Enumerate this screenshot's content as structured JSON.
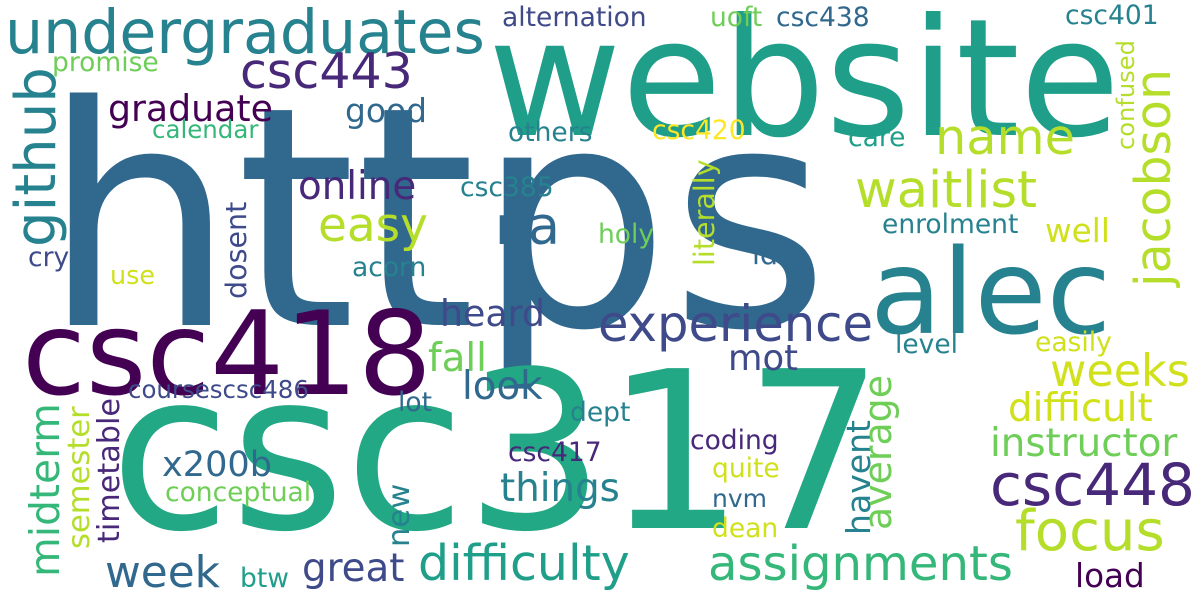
{
  "colors": {
    "background": "#ffffff",
    "palette": [
      "#440154",
      "#482878",
      "#3e4a89",
      "#31688e",
      "#26828e",
      "#1f9e89",
      "#35b779",
      "#6ece58",
      "#b5de2b",
      "#fde725"
    ]
  },
  "words": [
    {
      "text": "https",
      "color": "#31688e",
      "vertical": false
    },
    {
      "text": "csc317",
      "color": "#22a884",
      "vertical": false
    },
    {
      "text": "website",
      "color": "#1f9e89",
      "vertical": false
    },
    {
      "text": "alec",
      "color": "#26828e",
      "vertical": false
    },
    {
      "text": "csc418",
      "color": "#440154",
      "vertical": false
    },
    {
      "text": "undergraduates",
      "color": "#26828e",
      "vertical": false
    },
    {
      "text": "csc443",
      "color": "#482878",
      "vertical": false
    },
    {
      "text": "waitlist",
      "color": "#b5de2b",
      "vertical": false
    },
    {
      "text": "jacobson",
      "color": "#b5de2b",
      "vertical": true
    },
    {
      "text": "name",
      "color": "#b5de2b",
      "vertical": false
    },
    {
      "text": "csc448",
      "color": "#482878",
      "vertical": false
    },
    {
      "text": "focus",
      "color": "#b5de2b",
      "vertical": false
    },
    {
      "text": "experience",
      "color": "#3e4a89",
      "vertical": false
    },
    {
      "text": "difficulty",
      "color": "#1f9e89",
      "vertical": false
    },
    {
      "text": "assignments",
      "color": "#35b779",
      "vertical": false
    },
    {
      "text": "na",
      "color": "#31688e",
      "vertical": false
    },
    {
      "text": "easy",
      "color": "#b5de2b",
      "vertical": false
    },
    {
      "text": "github",
      "color": "#26828e",
      "vertical": true
    },
    {
      "text": "week",
      "color": "#31688e",
      "vertical": false
    },
    {
      "text": "weeks",
      "color": "#d0e11c",
      "vertical": false
    },
    {
      "text": "graduate",
      "color": "#440154",
      "vertical": false
    },
    {
      "text": "good",
      "color": "#31688e",
      "vertical": false
    },
    {
      "text": "difficult",
      "color": "#d0e11c",
      "vertical": false
    },
    {
      "text": "instructor",
      "color": "#6ece58",
      "vertical": false
    },
    {
      "text": "things",
      "color": "#26828e",
      "vertical": false
    },
    {
      "text": "midterm",
      "color": "#35b779",
      "vertical": true
    },
    {
      "text": "x200b",
      "color": "#31688e",
      "vertical": false
    },
    {
      "text": "online",
      "color": "#482878",
      "vertical": false
    },
    {
      "text": "heard",
      "color": "#3e4a89",
      "vertical": false
    },
    {
      "text": "fall",
      "color": "#6ece58",
      "vertical": false
    },
    {
      "text": "mot",
      "color": "#3e4a89",
      "vertical": false
    },
    {
      "text": "look",
      "color": "#31688e",
      "vertical": false
    },
    {
      "text": "great",
      "color": "#3e4a89",
      "vertical": false
    },
    {
      "text": "load",
      "color": "#440154",
      "vertical": false
    },
    {
      "text": "well",
      "color": "#d0e11c",
      "vertical": false
    },
    {
      "text": "havent",
      "color": "#26828e",
      "vertical": true
    },
    {
      "text": "average",
      "color": "#6ece58",
      "vertical": true
    },
    {
      "text": "semester",
      "color": "#b5de2b",
      "vertical": true
    },
    {
      "text": "new",
      "color": "#26828e",
      "vertical": true
    },
    {
      "text": "alternation",
      "color": "#3e4a89",
      "vertical": false
    },
    {
      "text": "csc401",
      "color": "#26828e",
      "vertical": false
    },
    {
      "text": "uoft",
      "color": "#6ece58",
      "vertical": false
    },
    {
      "text": "csc438",
      "color": "#31688e",
      "vertical": false
    },
    {
      "text": "promise",
      "color": "#6ece58",
      "vertical": false
    },
    {
      "text": "calendar",
      "color": "#35b779",
      "vertical": false
    },
    {
      "text": "others",
      "color": "#26828e",
      "vertical": false
    },
    {
      "text": "csc420",
      "color": "#fde725",
      "vertical": false
    },
    {
      "text": "care",
      "color": "#1f9e89",
      "vertical": false
    },
    {
      "text": "confused",
      "color": "#b5de2b",
      "vertical": true
    },
    {
      "text": "csc385",
      "color": "#26828e",
      "vertical": false
    },
    {
      "text": "enrolment",
      "color": "#26828e",
      "vertical": false
    },
    {
      "text": "literally",
      "color": "#b5de2b",
      "vertical": true
    },
    {
      "text": "holy",
      "color": "#6ece58",
      "vertical": false
    },
    {
      "text": "idk",
      "color": "#31688e",
      "vertical": false
    },
    {
      "text": "acorn",
      "color": "#26828e",
      "vertical": false
    },
    {
      "text": "dosent",
      "color": "#3e4a89",
      "vertical": true
    },
    {
      "text": "cry",
      "color": "#3e4a89",
      "vertical": false
    },
    {
      "text": "use",
      "color": "#d0e11c",
      "vertical": false
    },
    {
      "text": "level",
      "color": "#26828e",
      "vertical": false
    },
    {
      "text": "easily",
      "color": "#d0e11c",
      "vertical": false
    },
    {
      "text": "coursescsc486",
      "color": "#3e4a89",
      "vertical": false
    },
    {
      "text": "lot",
      "color": "#31688e",
      "vertical": false
    },
    {
      "text": "dept",
      "color": "#26828e",
      "vertical": false
    },
    {
      "text": "coding",
      "color": "#482878",
      "vertical": false
    },
    {
      "text": "csc417",
      "color": "#482878",
      "vertical": false
    },
    {
      "text": "quite",
      "color": "#d0e11c",
      "vertical": false
    },
    {
      "text": "timetable",
      "color": "#482878",
      "vertical": true
    },
    {
      "text": "conceptual",
      "color": "#6ece58",
      "vertical": false
    },
    {
      "text": "nvm",
      "color": "#31688e",
      "vertical": false
    },
    {
      "text": "dean",
      "color": "#d0e11c",
      "vertical": false
    },
    {
      "text": "btw",
      "color": "#1f9e89",
      "vertical": false
    }
  ]
}
